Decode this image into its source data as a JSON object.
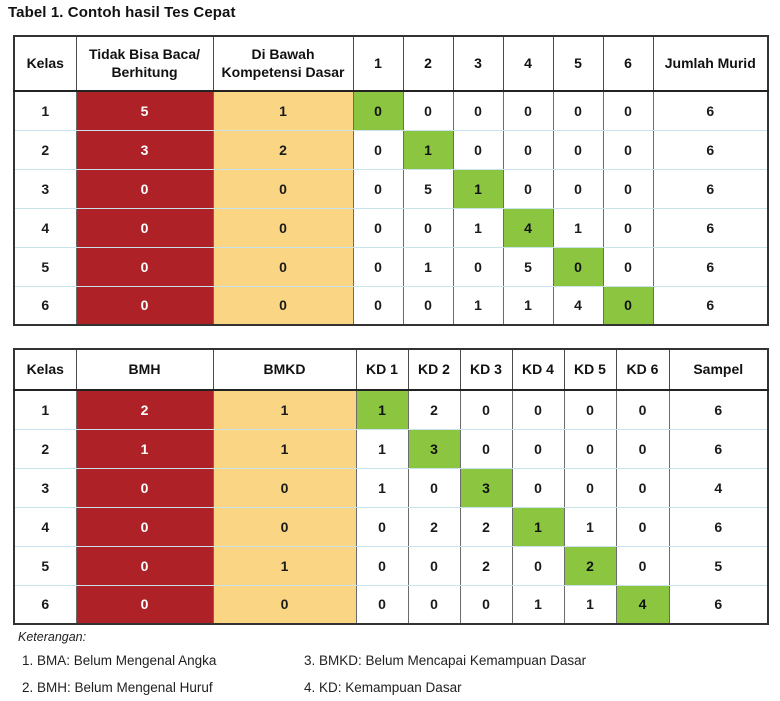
{
  "title": "Tabel 1. Contoh hasil Tes Cepat",
  "colors": {
    "red": "#AE2127",
    "yellow": "#FAD584",
    "green": "#8CC641"
  },
  "table1": {
    "headers": [
      "Kelas",
      "Tidak Bisa Baca/ Berhitung",
      "Di Bawah Kompetensi Dasar",
      "1",
      "2",
      "3",
      "4",
      "5",
      "6",
      "Jumlah Murid"
    ],
    "rows": [
      {
        "cells": [
          "1",
          "5",
          "1",
          "0",
          "0",
          "0",
          "0",
          "0",
          "0",
          "6"
        ],
        "green_col": 3
      },
      {
        "cells": [
          "2",
          "3",
          "2",
          "0",
          "1",
          "0",
          "0",
          "0",
          "0",
          "6"
        ],
        "green_col": 4
      },
      {
        "cells": [
          "3",
          "0",
          "0",
          "0",
          "5",
          "1",
          "0",
          "0",
          "0",
          "6"
        ],
        "green_col": 5
      },
      {
        "cells": [
          "4",
          "0",
          "0",
          "0",
          "0",
          "1",
          "4",
          "1",
          "0",
          "6"
        ],
        "green_col": 6
      },
      {
        "cells": [
          "5",
          "0",
          "0",
          "0",
          "1",
          "0",
          "5",
          "0",
          "0",
          "6"
        ],
        "green_col": 7
      },
      {
        "cells": [
          "6",
          "0",
          "0",
          "0",
          "0",
          "1",
          "1",
          "4",
          "0",
          "6"
        ],
        "green_col": 8
      }
    ]
  },
  "table2": {
    "headers": [
      "Kelas",
      "BMH",
      "BMKD",
      "KD 1",
      "KD 2",
      "KD 3",
      "KD 4",
      "KD 5",
      "KD 6",
      "Sampel"
    ],
    "rows": [
      {
        "cells": [
          "1",
          "2",
          "1",
          "1",
          "2",
          "0",
          "0",
          "0",
          "0",
          "6"
        ],
        "green_col": 3
      },
      {
        "cells": [
          "2",
          "1",
          "1",
          "1",
          "3",
          "0",
          "0",
          "0",
          "0",
          "6"
        ],
        "green_col": 4
      },
      {
        "cells": [
          "3",
          "0",
          "0",
          "1",
          "0",
          "3",
          "0",
          "0",
          "0",
          "4"
        ],
        "green_col": 5
      },
      {
        "cells": [
          "4",
          "0",
          "0",
          "0",
          "2",
          "2",
          "1",
          "1",
          "0",
          "6"
        ],
        "green_col": 6
      },
      {
        "cells": [
          "5",
          "0",
          "1",
          "0",
          "0",
          "2",
          "0",
          "2",
          "0",
          "5"
        ],
        "green_col": 7
      },
      {
        "cells": [
          "6",
          "0",
          "0",
          "0",
          "0",
          "0",
          "1",
          "1",
          "4",
          "6"
        ],
        "green_col": 8
      }
    ]
  },
  "legend": {
    "label": "Keterangan:",
    "items": [
      "1. BMA: Belum Mengenal Angka",
      "2. BMH: Belum Mengenal Huruf",
      "3. BMKD: Belum Mencapai Kemampuan Dasar",
      "4. KD: Kemampuan Dasar"
    ]
  }
}
